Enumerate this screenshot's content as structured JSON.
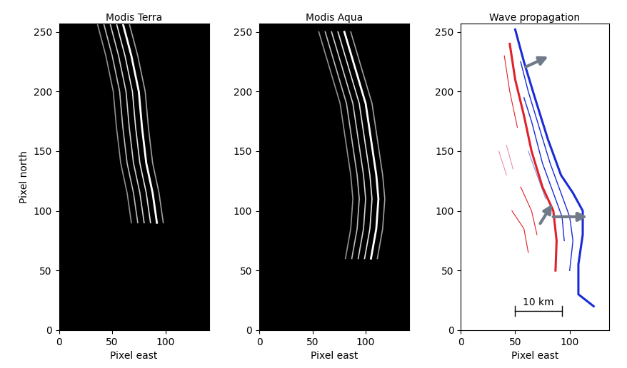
{
  "chart_data": [
    {
      "type": "line",
      "title": "Modis Terra",
      "x_label": "Pixel east",
      "y_label": "Pixel north",
      "xlim": [
        0,
        141
      ],
      "ylim": [
        0,
        257
      ],
      "xticks": [
        0,
        50,
        100
      ],
      "yticks": [
        0,
        50,
        100,
        150,
        200,
        250
      ],
      "series": [
        {
          "color": "#ffffff",
          "x": [
            60,
            68,
            75,
            78,
            82,
            88,
            92
          ],
          "values": [
            257,
            230,
            200,
            170,
            140,
            115,
            90
          ]
        },
        {
          "color": "#e6e6e6",
          "x": [
            54,
            62,
            69,
            72,
            76,
            82,
            86
          ],
          "values": [
            257,
            230,
            200,
            170,
            140,
            115,
            90
          ]
        },
        {
          "color": "#d0d0d0",
          "x": [
            48,
            56,
            63,
            66,
            70,
            76,
            80
          ],
          "values": [
            257,
            230,
            200,
            170,
            140,
            115,
            90
          ]
        },
        {
          "color": "#bbbbbb",
          "x": [
            42,
            50,
            57,
            60,
            64,
            70,
            74
          ],
          "values": [
            257,
            230,
            200,
            170,
            140,
            115,
            90
          ]
        },
        {
          "color": "#a0a0a0",
          "x": [
            66,
            74,
            81,
            84,
            88,
            94,
            98
          ],
          "values": [
            257,
            230,
            200,
            170,
            140,
            115,
            90
          ]
        },
        {
          "color": "#909090",
          "x": [
            36,
            44,
            51,
            54,
            58,
            64,
            68
          ],
          "values": [
            257,
            230,
            200,
            170,
            140,
            115,
            90
          ]
        }
      ]
    },
    {
      "type": "line",
      "title": "Modis Aqua",
      "x_label": "Pixel east",
      "xlim": [
        0,
        141
      ],
      "ylim": [
        0,
        257
      ],
      "xticks": [
        0,
        50,
        100
      ],
      "yticks": [
        0,
        50,
        100,
        150,
        200,
        250
      ],
      "series": [
        {
          "color": "#ffffff",
          "x": [
            80,
            90,
            100,
            105,
            110,
            112,
            110,
            105
          ],
          "values": [
            250,
            220,
            190,
            160,
            130,
            110,
            85,
            60
          ]
        },
        {
          "color": "#e6e6e6",
          "x": [
            74,
            84,
            94,
            99,
            104,
            106,
            104,
            99
          ],
          "values": [
            250,
            220,
            190,
            160,
            130,
            110,
            85,
            60
          ]
        },
        {
          "color": "#d0d0d0",
          "x": [
            68,
            78,
            88,
            93,
            98,
            100,
            98,
            93
          ],
          "values": [
            250,
            220,
            190,
            160,
            130,
            110,
            85,
            60
          ]
        },
        {
          "color": "#bbbbbb",
          "x": [
            62,
            72,
            82,
            87,
            92,
            94,
            92,
            87
          ],
          "values": [
            250,
            220,
            190,
            160,
            130,
            110,
            85,
            60
          ]
        },
        {
          "color": "#a0a0a0",
          "x": [
            86,
            96,
            106,
            111,
            116,
            118,
            116,
            111
          ],
          "values": [
            250,
            220,
            190,
            160,
            130,
            110,
            85,
            60
          ]
        },
        {
          "color": "#909090",
          "x": [
            56,
            66,
            76,
            81,
            86,
            88,
            86,
            81
          ],
          "values": [
            250,
            220,
            190,
            160,
            130,
            110,
            85,
            60
          ]
        }
      ]
    },
    {
      "type": "line",
      "title": "Wave propagation",
      "x_label": "Pixel east",
      "xlim": [
        0,
        136
      ],
      "ylim": [
        0,
        257
      ],
      "xticks": [
        0,
        50,
        100
      ],
      "yticks": [
        0,
        50,
        100,
        150,
        200,
        250
      ],
      "series": [
        {
          "color": "#1a2bd6",
          "x": [
            50,
            58,
            68,
            80,
            92,
            103,
            112,
            112,
            108,
            108,
            122
          ],
          "values": [
            252,
            225,
            195,
            160,
            130,
            115,
            100,
            80,
            55,
            30,
            20
          ]
        },
        {
          "color": "#1a2bd6",
          "x": [
            55,
            62,
            72,
            82,
            92,
            100,
            103,
            100
          ],
          "values": [
            225,
            200,
            170,
            140,
            115,
            95,
            75,
            50
          ]
        },
        {
          "color": "#1a2bd6",
          "x": [
            58,
            65,
            75,
            85,
            93,
            95
          ],
          "values": [
            195,
            175,
            140,
            115,
            95,
            75
          ]
        },
        {
          "color": "#8090e0",
          "x": [
            62,
            70,
            78
          ],
          "values": [
            150,
            130,
            110
          ]
        },
        {
          "color": "#e0202a",
          "x": [
            45,
            50,
            58,
            65,
            75,
            85,
            88,
            87
          ],
          "values": [
            240,
            210,
            180,
            150,
            120,
            100,
            75,
            50
          ]
        },
        {
          "color": "#e0202a",
          "x": [
            40,
            45,
            52
          ],
          "values": [
            230,
            200,
            170
          ]
        },
        {
          "color": "#e0202a",
          "x": [
            55,
            65,
            70
          ],
          "values": [
            120,
            100,
            80
          ]
        },
        {
          "color": "#e0202a",
          "x": [
            47,
            58,
            62
          ],
          "values": [
            100,
            85,
            65
          ]
        },
        {
          "color": "#e890b0",
          "x": [
            35,
            42
          ],
          "values": [
            150,
            130
          ]
        },
        {
          "color": "#e890b0",
          "x": [
            42,
            48
          ],
          "values": [
            155,
            135
          ]
        }
      ],
      "arrows": [
        {
          "color": "#707a88",
          "x": [
            58,
            82
          ],
          "values": [
            220,
            230
          ]
        },
        {
          "color": "#707a88",
          "x": [
            72,
            85
          ],
          "values": [
            88,
            107
          ]
        },
        {
          "color": "#707a88",
          "x": [
            83,
            118
          ],
          "values": [
            95,
            95
          ]
        }
      ],
      "scale_bar": {
        "label": "10 km",
        "x": [
          50,
          93
        ],
        "y": 16
      }
    }
  ]
}
